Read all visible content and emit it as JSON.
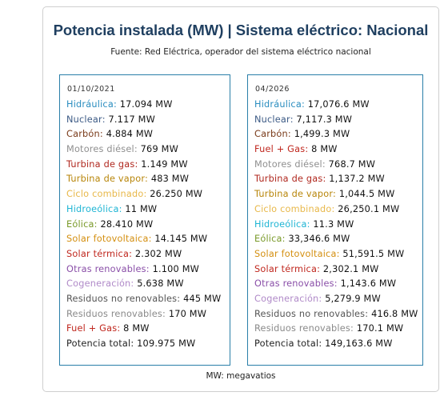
{
  "title": "Potencia instalada (MW) | Sistema eléctrico: Nacional",
  "source": "Fuente: Red Eléctrica, operador del sistema eléctrico nacional",
  "footer": "MW: megavatios",
  "colors": {
    "title": "#1f3f60",
    "panel_border": "#2a7fa8",
    "hidraulica": "#2a8dbf",
    "nuclear": "#3c5a85",
    "carbon": "#7a3b1a",
    "motores_diesel": "#8f8f8f",
    "turbina_gas": "#b0281f",
    "turbina_vapor": "#b8860b",
    "ciclo_combinado": "#e8b84a",
    "hidroeolica": "#1fb5d4",
    "eolica": "#7a9a2a",
    "solar_fotovoltaica": "#d48f10",
    "solar_termica": "#c0281f",
    "otras_renovables": "#8a4fa8",
    "cogeneracion": "#b08ac8",
    "residuos_no_renovables": "#555555",
    "residuos_renovables": "#8a8a8a",
    "fuel_gas": "#c0281f",
    "potencia_total": "#222222"
  },
  "panels": [
    {
      "date": "01/10/2021",
      "rows": [
        {
          "label": "Hidráulica",
          "value": "17.094 MW",
          "color": "#2a8dbf"
        },
        {
          "label": "Nuclear",
          "value": "7.117 MW",
          "color": "#3c5a85"
        },
        {
          "label": "Carbón",
          "value": "4.884 MW",
          "color": "#7a3b1a"
        },
        {
          "label": "Motores diésel",
          "value": "769 MW",
          "color": "#8f8f8f"
        },
        {
          "label": "Turbina de gas",
          "value": "1.149 MW",
          "color": "#b0281f"
        },
        {
          "label": "Turbina de vapor",
          "value": "483 MW",
          "color": "#b8860b"
        },
        {
          "label": "Ciclo combinado",
          "value": "26.250 MW",
          "color": "#e8b84a"
        },
        {
          "label": "Hidroeólica",
          "value": "11 MW",
          "color": "#1fb5d4"
        },
        {
          "label": "Eólica",
          "value": "28.410 MW",
          "color": "#7a9a2a"
        },
        {
          "label": "Solar fotovoltaica",
          "value": "14.145 MW",
          "color": "#d48f10"
        },
        {
          "label": "Solar térmica",
          "value": "2.302 MW",
          "color": "#c0281f"
        },
        {
          "label": "Otras renovables",
          "value": "1.100 MW",
          "color": "#8a4fa8"
        },
        {
          "label": "Cogeneración",
          "value": "5.638 MW",
          "color": "#b08ac8"
        },
        {
          "label": "Residuos no renovables",
          "value": "445 MW",
          "color": "#555555"
        },
        {
          "label": "Residuos renovables",
          "value": "170 MW",
          "color": "#8a8a8a"
        },
        {
          "label": "Fuel + Gas",
          "value": "8 MW",
          "color": "#c0281f"
        },
        {
          "label": "Potencia total",
          "value": "109.975 MW",
          "color": "#222222"
        }
      ]
    },
    {
      "date": "04/2026",
      "rows": [
        {
          "label": "Hidráulica",
          "value": "17,076.6 MW",
          "color": "#2a8dbf"
        },
        {
          "label": "Nuclear",
          "value": "7,117.3 MW",
          "color": "#3c5a85"
        },
        {
          "label": "Carbón",
          "value": "1,499.3 MW",
          "color": "#7a3b1a"
        },
        {
          "label": "Fuel + Gas",
          "value": "8 MW",
          "color": "#c0281f"
        },
        {
          "label": "Motores diésel",
          "value": "768.7 MW",
          "color": "#8f8f8f"
        },
        {
          "label": "Turbina de gas",
          "value": "1,137.2 MW",
          "color": "#b0281f"
        },
        {
          "label": "Turbina de vapor",
          "value": "1,044.5 MW",
          "color": "#b8860b"
        },
        {
          "label": "Ciclo combinado",
          "value": "26,250.1 MW",
          "color": "#e8b84a"
        },
        {
          "label": "Hidroeólica",
          "value": "11.3 MW",
          "color": "#1fb5d4"
        },
        {
          "label": "Eólica",
          "value": "33,346.6 MW",
          "color": "#7a9a2a"
        },
        {
          "label": "Solar fotovoltaica",
          "value": "51,591.5 MW",
          "color": "#d48f10"
        },
        {
          "label": "Solar térmica",
          "value": "2,302.1 MW",
          "color": "#c0281f"
        },
        {
          "label": "Otras renovables",
          "value": "1,143.6 MW",
          "color": "#8a4fa8"
        },
        {
          "label": "Cogeneración",
          "value": "5,279.9 MW",
          "color": "#b08ac8"
        },
        {
          "label": "Residuos no renovables",
          "value": "416.8 MW",
          "color": "#555555"
        },
        {
          "label": "Residuos renovables",
          "value": "170.1 MW",
          "color": "#8a8a8a"
        },
        {
          "label": "Potencia total",
          "value": "149,163.6 MW",
          "color": "#222222"
        }
      ]
    }
  ]
}
